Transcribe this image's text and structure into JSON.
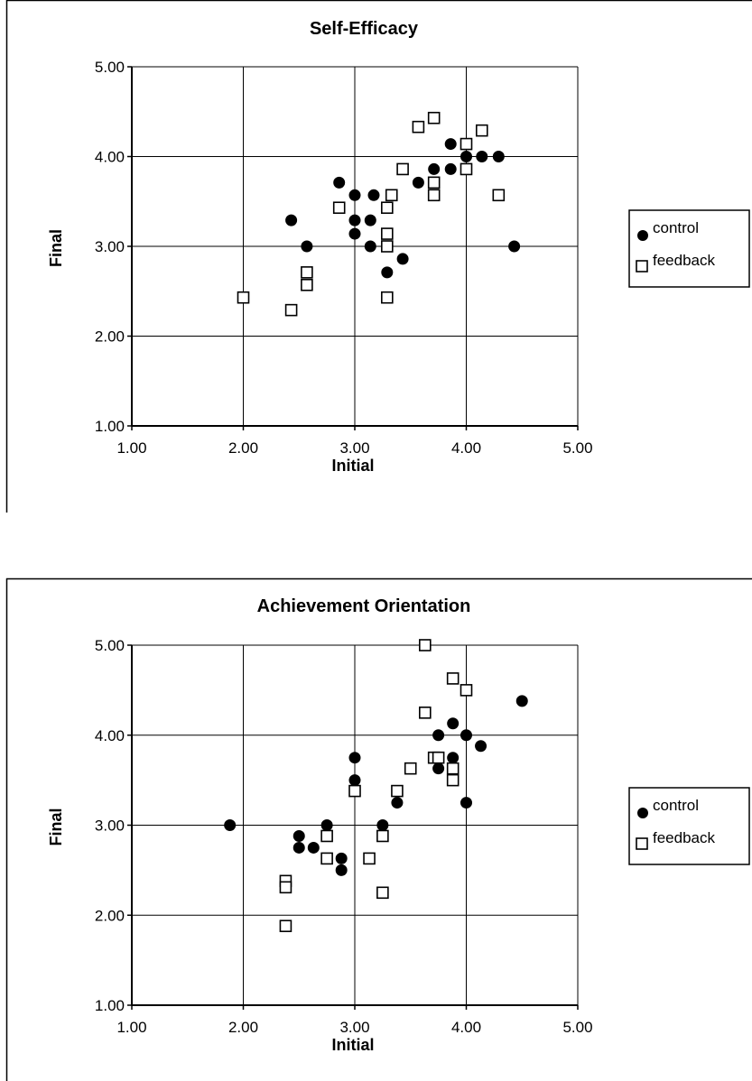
{
  "chart_data": [
    {
      "type": "scatter",
      "title": "Self-Efficacy",
      "xlabel": "Initial",
      "ylabel": "Final",
      "xlim": [
        1,
        5
      ],
      "ylim": [
        1,
        5
      ],
      "xticks": [
        "1.00",
        "2.00",
        "3.00",
        "4.00",
        "5.00"
      ],
      "yticks": [
        "1.00",
        "2.00",
        "3.00",
        "4.00",
        "5.00"
      ],
      "grid": true,
      "legend_position": "right",
      "series": [
        {
          "name": "control",
          "marker": "filled-circle",
          "points": [
            [
              2.43,
              3.29
            ],
            [
              2.57,
              3.0
            ],
            [
              2.86,
              3.71
            ],
            [
              3.0,
              3.57
            ],
            [
              3.0,
              3.29
            ],
            [
              3.0,
              3.14
            ],
            [
              3.14,
              3.29
            ],
            [
              3.14,
              3.0
            ],
            [
              3.17,
              3.57
            ],
            [
              3.29,
              2.71
            ],
            [
              3.43,
              2.86
            ],
            [
              3.57,
              3.71
            ],
            [
              3.71,
              3.86
            ],
            [
              3.86,
              3.86
            ],
            [
              3.86,
              4.14
            ],
            [
              4.0,
              4.0
            ],
            [
              4.14,
              4.0
            ],
            [
              4.29,
              4.0
            ],
            [
              4.43,
              3.0
            ]
          ]
        },
        {
          "name": "feedback",
          "marker": "open-square",
          "points": [
            [
              2.0,
              2.43
            ],
            [
              2.43,
              2.29
            ],
            [
              2.57,
              2.71
            ],
            [
              2.57,
              2.57
            ],
            [
              2.86,
              3.43
            ],
            [
              3.29,
              3.43
            ],
            [
              3.29,
              3.14
            ],
            [
              3.29,
              3.0
            ],
            [
              3.29,
              2.43
            ],
            [
              3.33,
              3.57
            ],
            [
              3.43,
              3.86
            ],
            [
              3.57,
              4.33
            ],
            [
              3.71,
              4.43
            ],
            [
              3.71,
              3.71
            ],
            [
              3.71,
              3.57
            ],
            [
              4.0,
              4.14
            ],
            [
              4.0,
              3.86
            ],
            [
              4.14,
              4.29
            ],
            [
              4.29,
              3.57
            ]
          ]
        }
      ]
    },
    {
      "type": "scatter",
      "title": "Achievement Orientation",
      "xlabel": "Initial",
      "ylabel": "Final",
      "xlim": [
        1,
        5
      ],
      "ylim": [
        1,
        5
      ],
      "xticks": [
        "1.00",
        "2.00",
        "3.00",
        "4.00",
        "5.00"
      ],
      "yticks": [
        "1.00",
        "2.00",
        "3.00",
        "4.00",
        "5.00"
      ],
      "grid": true,
      "legend_position": "right",
      "series": [
        {
          "name": "control",
          "marker": "filled-circle",
          "points": [
            [
              1.88,
              3.0
            ],
            [
              2.5,
              2.88
            ],
            [
              2.5,
              2.75
            ],
            [
              2.63,
              2.75
            ],
            [
              2.75,
              3.0
            ],
            [
              2.88,
              2.63
            ],
            [
              2.88,
              2.5
            ],
            [
              3.0,
              3.75
            ],
            [
              3.0,
              3.5
            ],
            [
              3.25,
              3.0
            ],
            [
              3.38,
              3.25
            ],
            [
              3.75,
              4.0
            ],
            [
              3.75,
              3.63
            ],
            [
              3.88,
              4.13
            ],
            [
              3.88,
              3.75
            ],
            [
              4.0,
              4.0
            ],
            [
              4.0,
              3.25
            ],
            [
              4.13,
              3.88
            ],
            [
              4.5,
              4.38
            ]
          ]
        },
        {
          "name": "feedback",
          "marker": "open-square",
          "points": [
            [
              2.38,
              2.38
            ],
            [
              2.38,
              2.31
            ],
            [
              2.38,
              1.88
            ],
            [
              2.75,
              2.88
            ],
            [
              2.75,
              2.63
            ],
            [
              3.0,
              3.38
            ],
            [
              3.13,
              2.63
            ],
            [
              3.25,
              2.88
            ],
            [
              3.25,
              2.25
            ],
            [
              3.38,
              3.38
            ],
            [
              3.5,
              3.63
            ],
            [
              3.63,
              5.0
            ],
            [
              3.63,
              4.25
            ],
            [
              3.71,
              3.75
            ],
            [
              3.75,
              3.75
            ],
            [
              3.88,
              4.63
            ],
            [
              3.88,
              3.63
            ],
            [
              3.88,
              3.5
            ],
            [
              4.0,
              4.5
            ]
          ]
        }
      ]
    }
  ]
}
